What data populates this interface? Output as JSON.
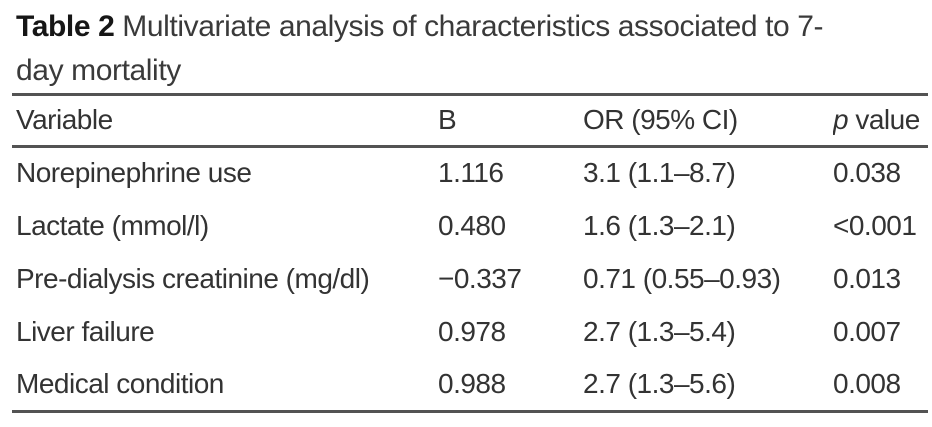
{
  "title": {
    "label": "Table 2",
    "line1_rest": " Multivariate analysis of characteristics associated to 7-",
    "line2": "day mortality"
  },
  "table": {
    "header": {
      "variable": "Variable",
      "b": "B",
      "or": "OR (95% CI)",
      "p_italic": "p",
      "p_rest": " value"
    },
    "rows": [
      {
        "variable": "Norepinephrine use",
        "b": "1.116",
        "or": "3.1 (1.1–8.7)",
        "p": "0.038"
      },
      {
        "variable": "Lactate (mmol/l)",
        "b": "0.480",
        "or": "1.6 (1.3–2.1)",
        "p": "<0.001"
      },
      {
        "variable": "Pre-dialysis creatinine (mg/dl)",
        "b": "−0.337",
        "or": "0.71 (0.55–0.93)",
        "p": "0.013"
      },
      {
        "variable": "Liver failure",
        "b": "0.978",
        "or": "2.7 (1.3–5.4)",
        "p": "0.007"
      },
      {
        "variable": "Medical condition",
        "b": "0.988",
        "or": "2.7 (1.3–5.6)",
        "p": "0.008"
      }
    ]
  },
  "colors": {
    "background": "#ffffff",
    "text": "#333333",
    "title_bold": "#161616",
    "rule": "#535353"
  }
}
